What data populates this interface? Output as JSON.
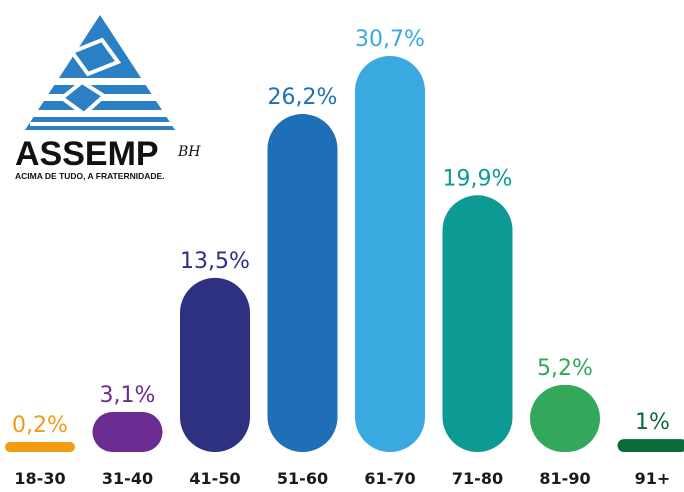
{
  "logo": {
    "name": "ASSEMP",
    "suffix": "BH",
    "tagline": "ACIMA DE TUDO, A FRATERNIDADE."
  },
  "chart_data": {
    "type": "bar",
    "title": "",
    "xlabel": "",
    "ylabel": "",
    "categories": [
      "18-30",
      "31-40",
      "41-50",
      "51-60",
      "61-70",
      "71-80",
      "81-90",
      "91+"
    ],
    "values": [
      0.2,
      3.1,
      13.5,
      26.2,
      30.7,
      19.9,
      5.2,
      1
    ],
    "value_labels": [
      "0,2%",
      "3,1%",
      "13,5%",
      "26,2%",
      "30,7%",
      "19,9%",
      "5,2%",
      "1%"
    ],
    "colors": [
      "#F39C12",
      "#6A2C91",
      "#2E3182",
      "#1F6FB8",
      "#3AA9E0",
      "#0E9A94",
      "#34A85A",
      "#0B6B36"
    ],
    "grid": false,
    "legend": "none"
  }
}
